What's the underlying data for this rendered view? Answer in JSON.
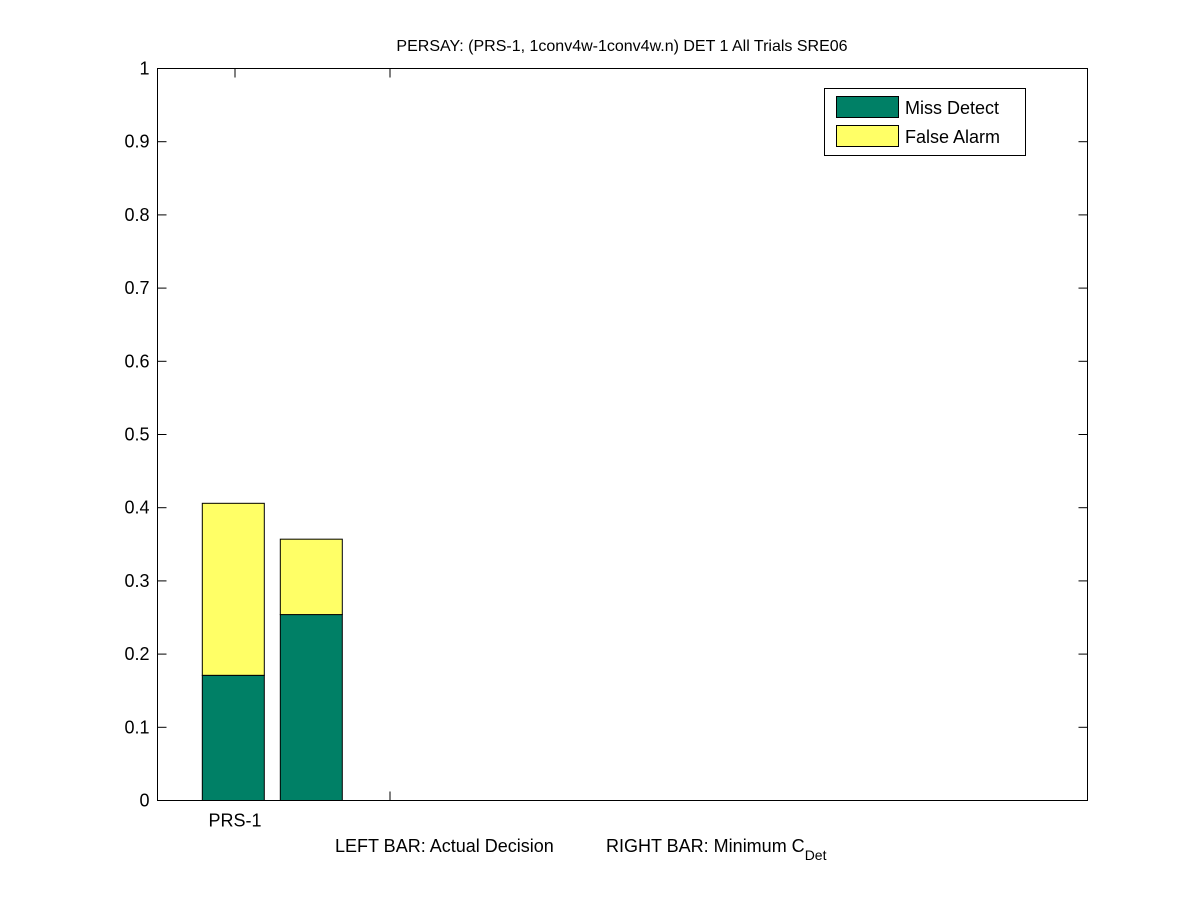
{
  "chart_data": {
    "type": "bar",
    "stacked": true,
    "title": "PERSAY: (PRS-1, 1conv4w-1conv4w.n) DET 1 All Trials SRE06",
    "xlabel_left": "LEFT BAR: Actual Decision",
    "xlabel_right": "RIGHT BAR: Minimum C",
    "xlabel_right_subscript": "Det",
    "categories": [
      "PRS-1"
    ],
    "x_tick_labels": [
      "PRS-1",
      ""
    ],
    "bars": [
      {
        "x": 0.75,
        "miss_detect": 0.171,
        "false_alarm": 0.235
      },
      {
        "x": 1.25,
        "miss_detect": 0.254,
        "false_alarm": 0.103
      }
    ],
    "series": [
      {
        "name": "Miss Detect",
        "color": "#008066"
      },
      {
        "name": "False Alarm",
        "color": "#ffff66"
      }
    ],
    "xlim": [
      0.5,
      6.5
    ],
    "ylim": [
      0,
      1
    ],
    "yticks": [
      "0",
      "0.1",
      "0.2",
      "0.3",
      "0.4",
      "0.5",
      "0.6",
      "0.7",
      "0.8",
      "0.9",
      "1"
    ],
    "grid": false,
    "legend_position": "top-right"
  }
}
